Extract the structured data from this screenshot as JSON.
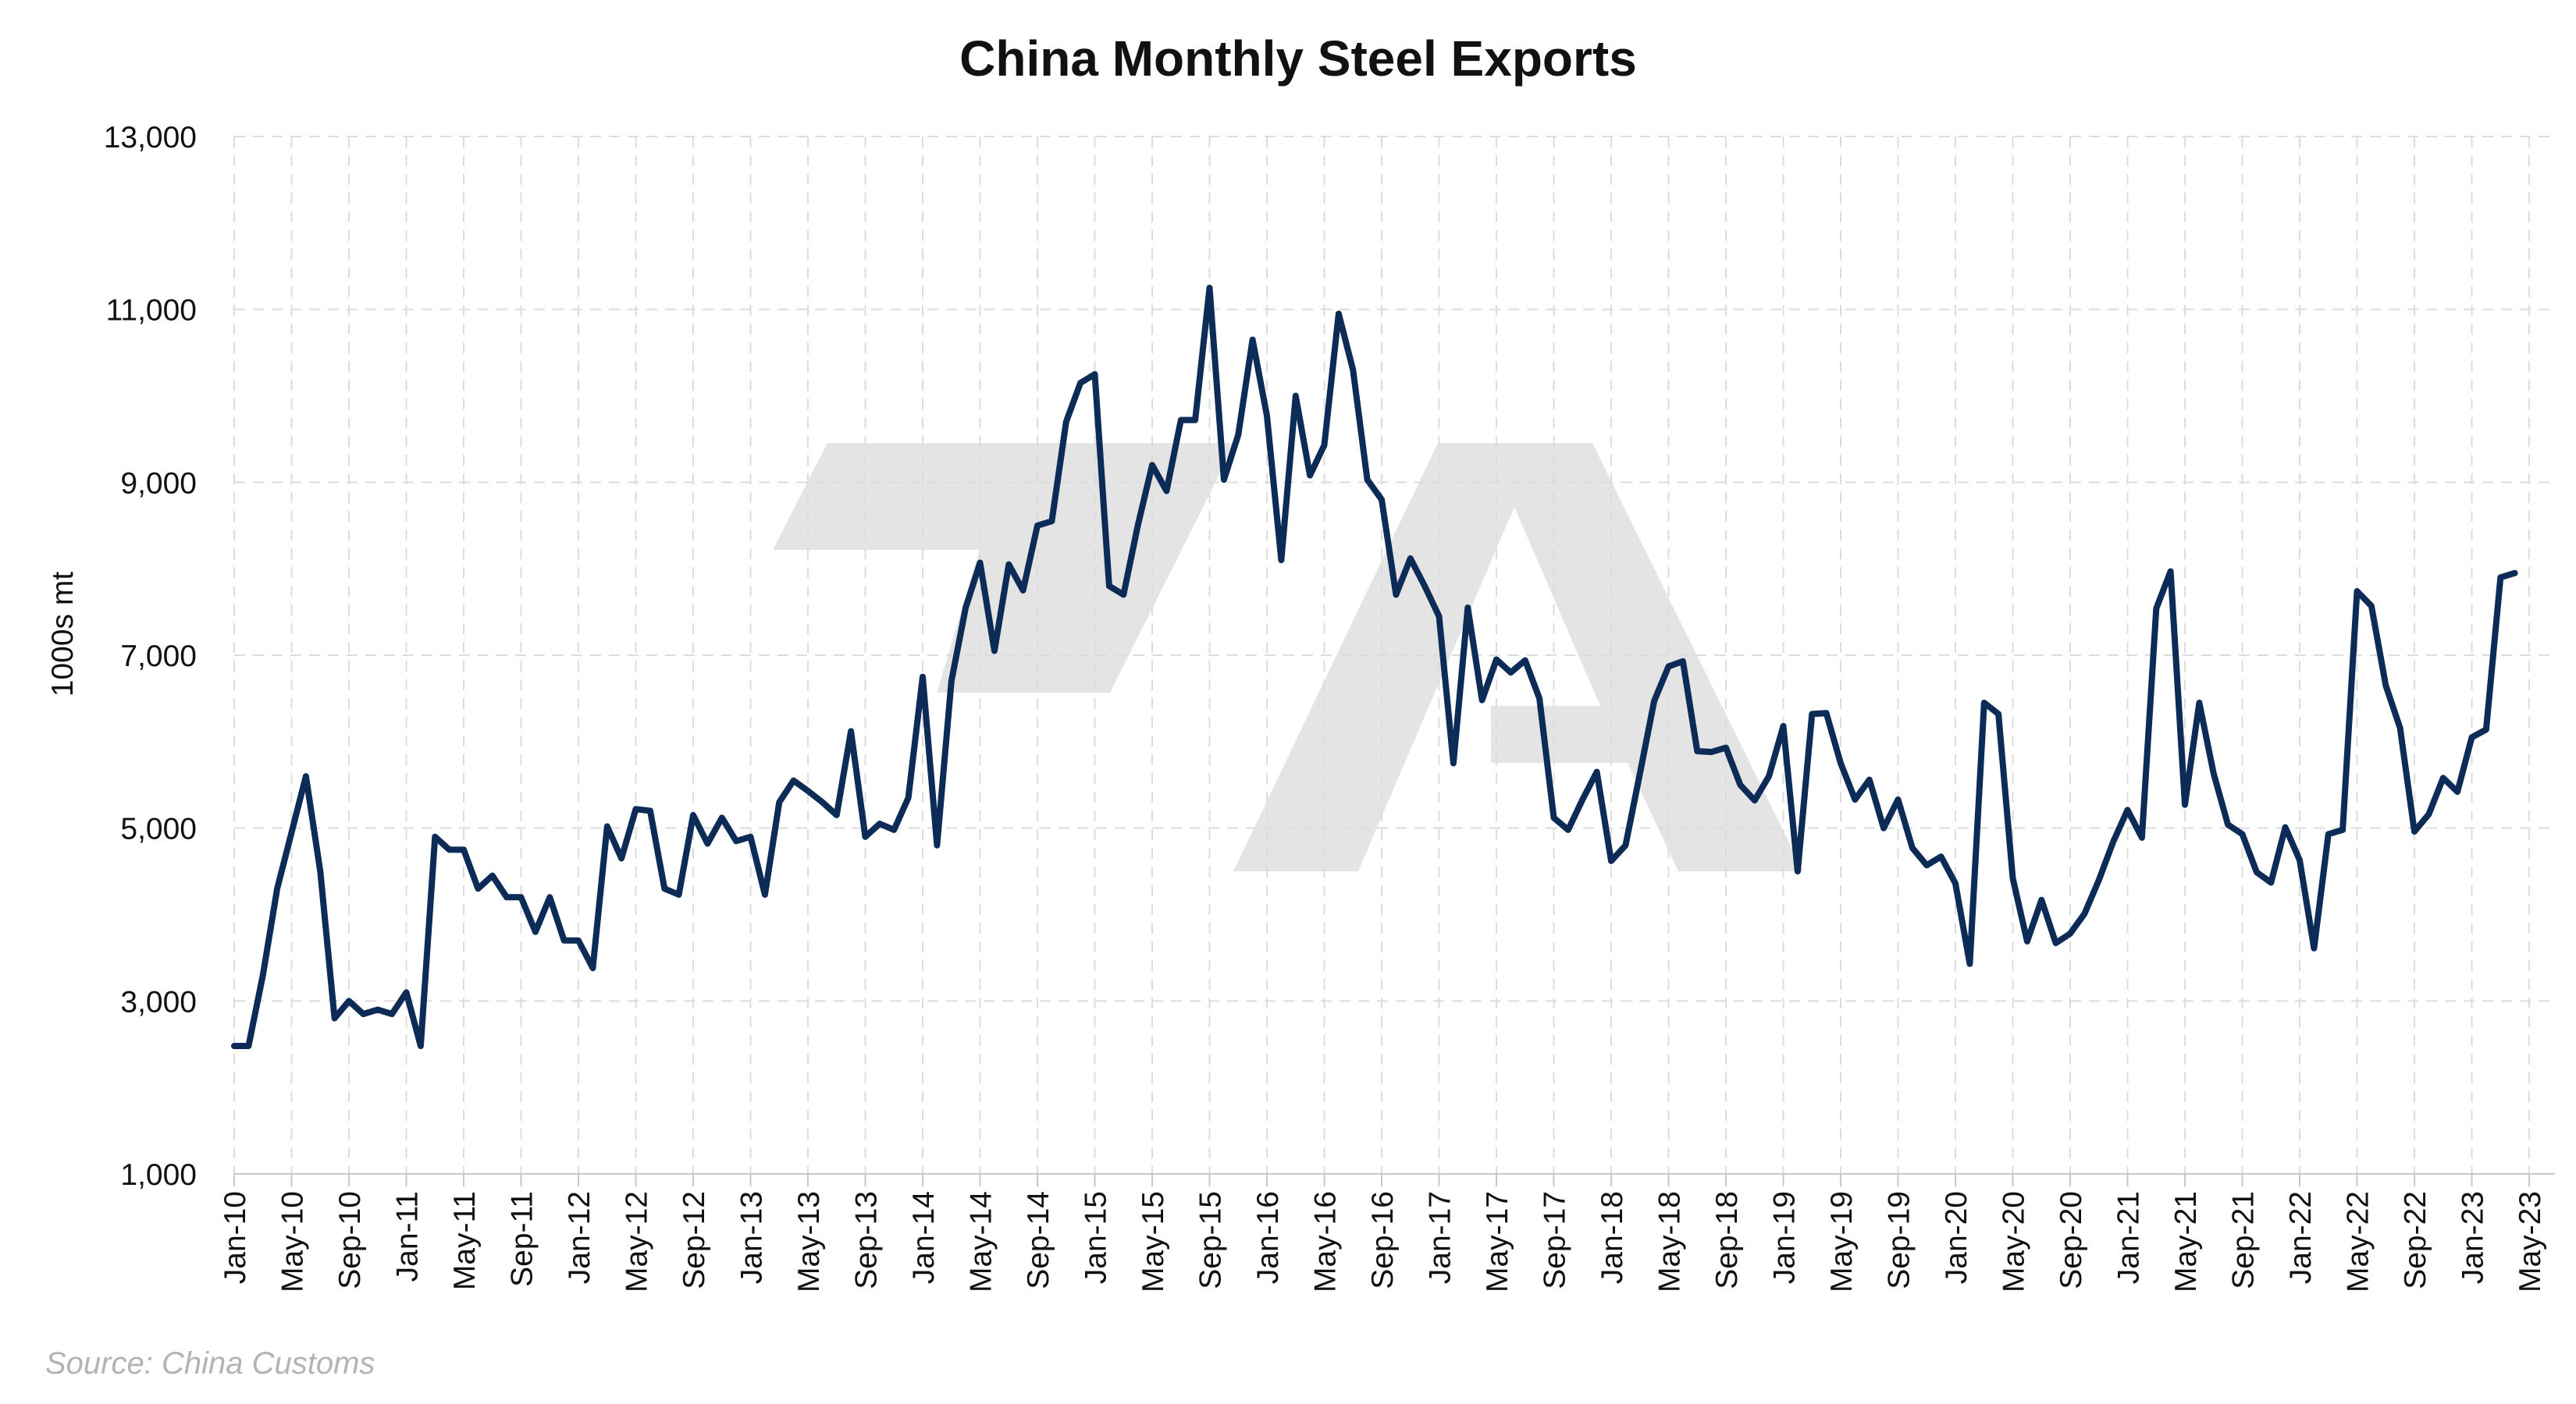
{
  "chart_data": {
    "type": "line",
    "title": "China Monthly Steel Exports",
    "ylabel": "1000s mt",
    "xlabel": "",
    "source": "Source: China Customs",
    "ylim": [
      1000,
      13000
    ],
    "yticks": [
      1000,
      3000,
      5000,
      7000,
      9000,
      11000,
      13000
    ],
    "ytick_labels": [
      "1,000",
      "3,000",
      "5,000",
      "7,000",
      "9,000",
      "11,000",
      "13,000"
    ],
    "xticks": [
      "Jan-10",
      "May-10",
      "Sep-10",
      "Jan-11",
      "May-11",
      "Sep-11",
      "Jan-12",
      "May-12",
      "Sep-12",
      "Jan-13",
      "May-13",
      "Sep-13",
      "Jan-14",
      "May-14",
      "Sep-14",
      "Jan-15",
      "May-15",
      "Sep-15",
      "Jan-16",
      "May-16",
      "Sep-16",
      "Jan-17",
      "May-17",
      "Sep-17",
      "Jan-18",
      "May-18",
      "Sep-18",
      "Jan-19",
      "May-19",
      "Sep-19",
      "Jan-20",
      "May-20",
      "Sep-20",
      "Jan-21",
      "May-21",
      "Sep-21",
      "Jan-22",
      "May-22",
      "Sep-22",
      "Jan-23",
      "May-23"
    ],
    "grid": true,
    "series": [
      {
        "color": "#0d2b57",
        "x_start": "Jan-10",
        "x_end": "Apr-23",
        "values": [
          2480,
          2480,
          3300,
          4300,
          4950,
          5600,
          4500,
          2800,
          3000,
          2850,
          2900,
          2850,
          3100,
          2480,
          4900,
          4750,
          4750,
          4300,
          4450,
          4200,
          4200,
          3800,
          4200,
          3700,
          3700,
          3380,
          5020,
          4650,
          5220,
          5200,
          4300,
          4230,
          5150,
          4820,
          5120,
          4850,
          4900,
          4230,
          5300,
          5550,
          5430,
          5300,
          5150,
          6120,
          4900,
          5050,
          4980,
          5350,
          6750,
          4800,
          6700,
          7550,
          8070,
          7050,
          8050,
          7750,
          8500,
          8550,
          9700,
          10150,
          10250,
          7800,
          7700,
          8500,
          9200,
          8900,
          9720,
          9720,
          11250,
          9030,
          9550,
          10650,
          9770,
          8100,
          10000,
          9080,
          9430,
          10950,
          10300,
          9030,
          8800,
          7700,
          8120,
          7800,
          7450,
          5750,
          7550,
          6480,
          6950,
          6800,
          6940,
          6500,
          5120,
          4980,
          5330,
          5650,
          4620,
          4800,
          5630,
          6470,
          6870,
          6930,
          5890,
          5880,
          5930,
          5500,
          5320,
          5600,
          6180,
          4500,
          6320,
          6330,
          5750,
          5330,
          5560,
          5000,
          5330,
          4770,
          4570,
          4670,
          4360,
          3430,
          6450,
          6320,
          4420,
          3690,
          4170,
          3670,
          3780,
          4010,
          4400,
          4840,
          5210,
          4890,
          7540,
          7970,
          5270,
          6450,
          5630,
          5040,
          4930,
          4490,
          4370,
          5010,
          4630,
          3610,
          4930,
          4980,
          7740,
          7570,
          6650,
          6160,
          4960,
          5160,
          5580,
          5420,
          6050,
          6140,
          7900,
          7950
        ]
      }
    ]
  }
}
